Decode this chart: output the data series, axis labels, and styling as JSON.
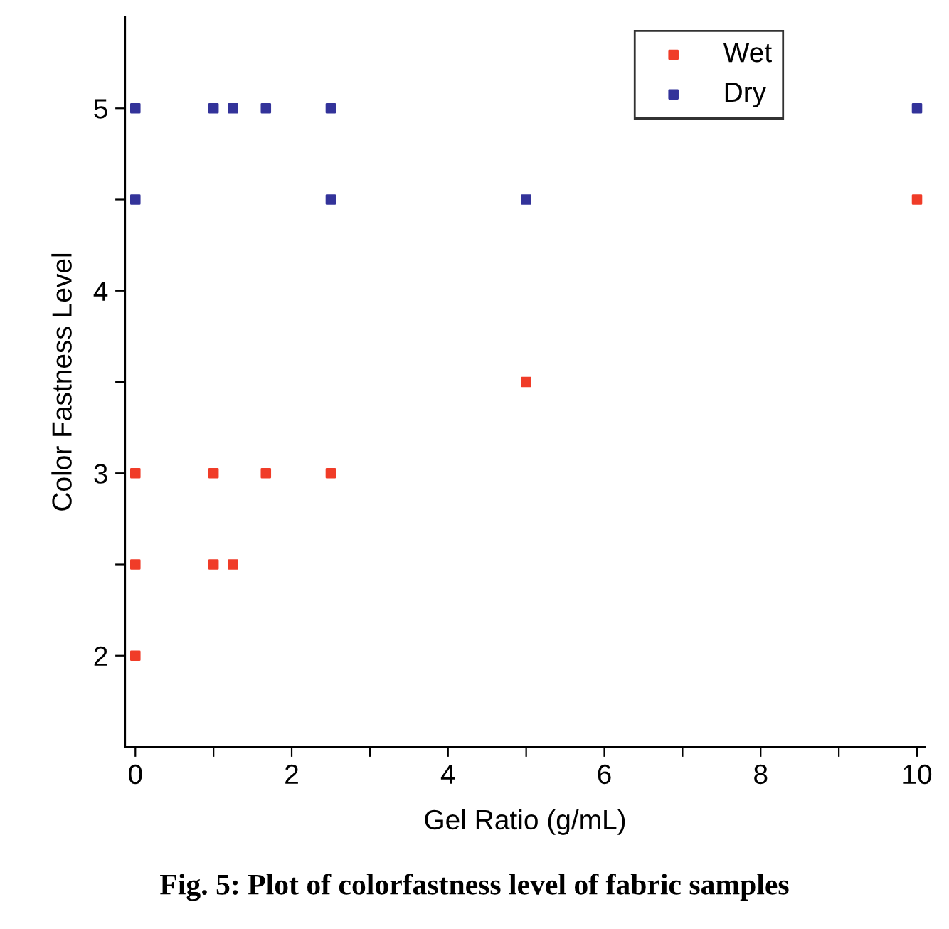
{
  "chart_data": {
    "type": "scatter",
    "xlabel": "Gel Ratio (g/mL)",
    "ylabel": "Color Fastness Level",
    "annotations": [
      "Fig. 5: Plot of colorfastness level of fabric samples"
    ],
    "xlim": [
      -0.13,
      10.1
    ],
    "ylim": [
      1.5,
      5.5
    ],
    "xticks": [
      0,
      {
        "value": 1,
        "label": null
      },
      2,
      {
        "value": 3,
        "label": null
      },
      4,
      {
        "value": 5,
        "label": null
      },
      6,
      {
        "value": 7,
        "label": null
      },
      8,
      {
        "value": 9,
        "label": null
      },
      10
    ],
    "yticks": [
      {
        "value": 2.5,
        "label": null
      },
      2,
      3,
      {
        "value": 3.5,
        "label": null
      },
      4,
      {
        "value": 4.5,
        "label": null
      },
      5
    ],
    "marker": "square",
    "legend": "top right",
    "grid": false,
    "series": [
      {
        "name": "Wet",
        "color": "#f03c28",
        "x": [
          0,
          0,
          0,
          1,
          1,
          1.25,
          1.67,
          2.5,
          5,
          10
        ],
        "values": [
          2,
          2.5,
          3,
          2.5,
          3,
          2.5,
          3,
          3,
          3.5,
          4.5
        ]
      },
      {
        "name": "Dry",
        "color": "#33339a",
        "x": [
          0,
          0,
          1,
          1.25,
          1.67,
          2.5,
          2.5,
          5,
          10
        ],
        "values": [
          5,
          4.5,
          5,
          5,
          5,
          5,
          4.5,
          4.5,
          5
        ]
      }
    ]
  }
}
